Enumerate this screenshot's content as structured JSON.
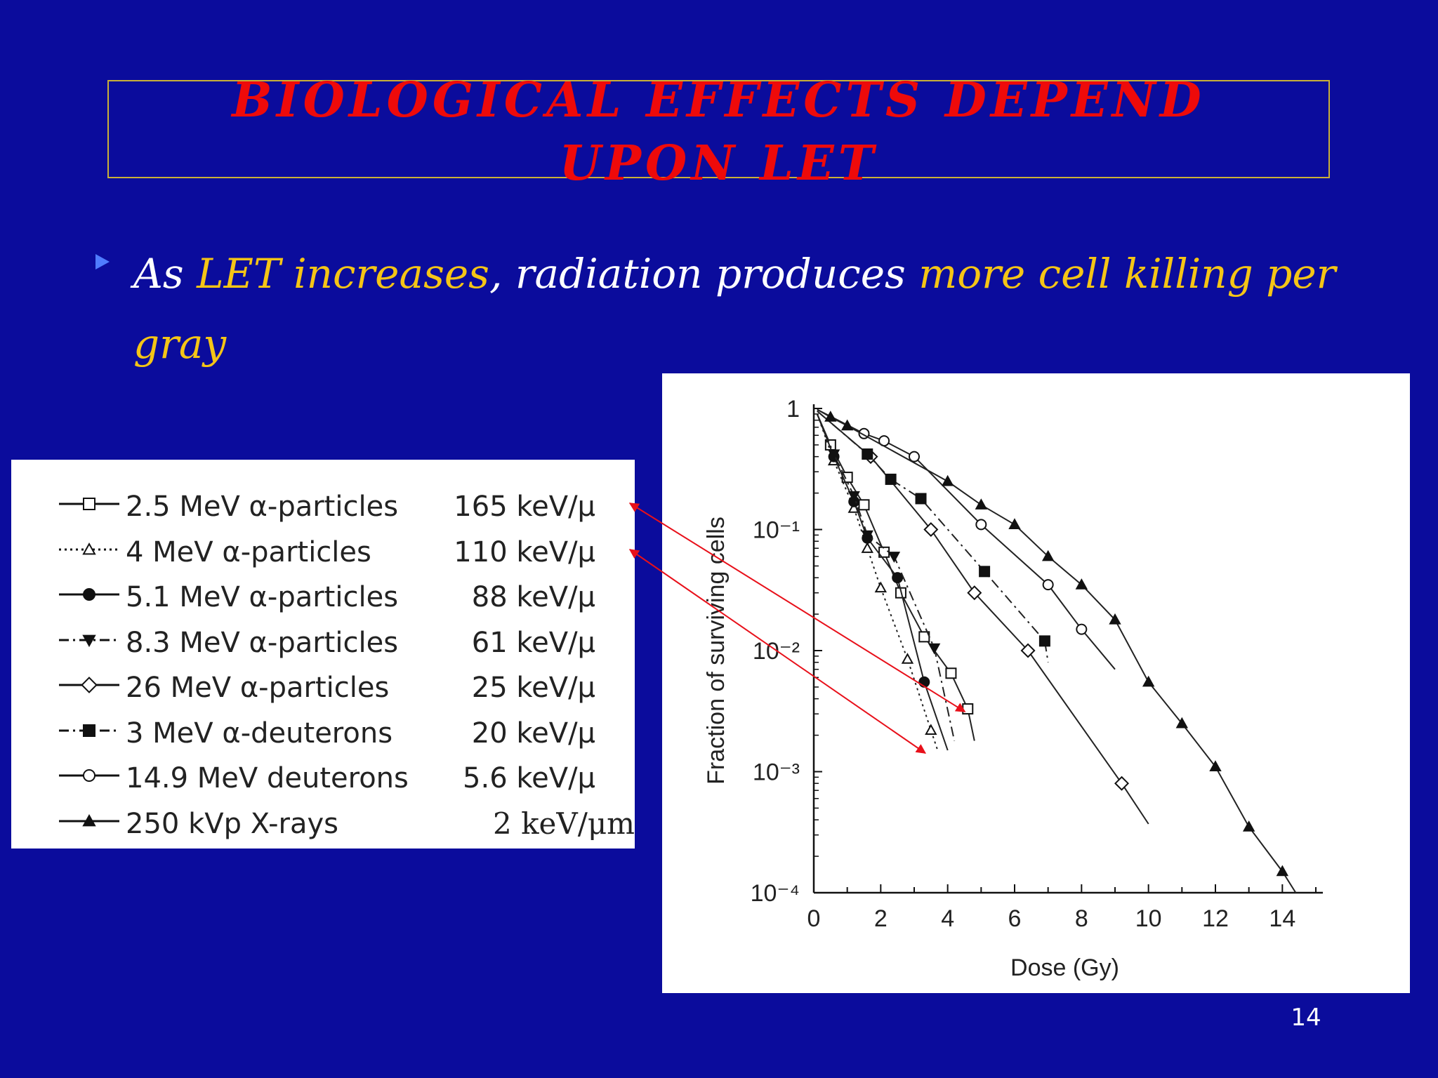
{
  "slide": {
    "title_line1": "BIOLOGICAL EFFECTS DEPEND",
    "title_line2": "UPON LET",
    "bullet": {
      "t1": "As ",
      "t2": "LET increases",
      "t3": ", radiation produces ",
      "t4": "more cell killing per gray"
    },
    "page_number": "14",
    "colors": {
      "background": "#0b0c9c",
      "title": "#ee0a0a",
      "highlight": "#f5c516",
      "arrow": "#e8101a"
    }
  },
  "legend": [
    {
      "label": "2.5 MeV α-particles",
      "let": "165 keV/μ",
      "symbol": "square-open",
      "line": "solid"
    },
    {
      "label": "4 MeV α-particles",
      "let": "110 keV/μ",
      "symbol": "triangle-open",
      "line": "dotted"
    },
    {
      "label": "5.1 MeV α-particles",
      "let": "88 keV/μ",
      "symbol": "circle-filled",
      "line": "solid"
    },
    {
      "label": "8.3 MeV α-particles",
      "let": "61 keV/μ",
      "symbol": "triangle-down-filled",
      "line": "dashdot"
    },
    {
      "label": "26 MeV α-particles",
      "let": "25 keV/μ",
      "symbol": "diamond-open",
      "line": "solid"
    },
    {
      "label": "3 MeV α-deuterons",
      "let": "20 keV/μ",
      "symbol": "square-filled",
      "line": "dashdot"
    },
    {
      "label": "14.9 MeV deuterons",
      "let": "5.6 keV/μ",
      "symbol": "circle-open",
      "line": "solid"
    },
    {
      "label": "250 kVp X-rays",
      "let": "2 keV/μm",
      "symbol": "triangle-filled",
      "line": "solid"
    }
  ],
  "chart_data": {
    "type": "scatter",
    "xlabel": "Dose (Gy)",
    "ylabel": "Fraction of surviving cells",
    "xlim": [
      0,
      15
    ],
    "ylim": [
      0.0001,
      1
    ],
    "y_scale": "log",
    "xticks": [
      "0",
      "2",
      "4",
      "6",
      "8",
      "10",
      "12",
      "14"
    ],
    "yticks": [
      "1",
      "10⁻¹",
      "10⁻²",
      "10⁻³",
      "10⁻⁴"
    ],
    "series": [
      {
        "name": "2.5 MeV α-particles",
        "symbol": "square-open",
        "line": "solid",
        "x": [
          0.5,
          1.0,
          1.5,
          2.1,
          2.6,
          3.3,
          4.1,
          4.6
        ],
        "y": [
          0.5,
          0.27,
          0.16,
          0.065,
          0.03,
          0.013,
          0.0065,
          0.0033
        ],
        "fit": [
          [
            0.1,
            0.9
          ],
          [
            4.8,
            0.0018
          ]
        ]
      },
      {
        "name": "4 MeV α-particles",
        "symbol": "triangle-open",
        "line": "dotted",
        "x": [
          0.6,
          1.2,
          1.6,
          2.0,
          2.8,
          3.5
        ],
        "y": [
          0.37,
          0.15,
          0.07,
          0.033,
          0.0085,
          0.0022
        ],
        "fit": [
          [
            0.1,
            0.9
          ],
          [
            3.7,
            0.0015
          ]
        ]
      },
      {
        "name": "5.1 MeV α-particles",
        "symbol": "circle-filled",
        "line": "solid",
        "x": [
          0.6,
          1.2,
          1.6,
          2.5,
          3.3
        ],
        "y": [
          0.4,
          0.17,
          0.085,
          0.04,
          0.0055
        ],
        "fit": [
          [
            0.1,
            0.9
          ],
          [
            4.0,
            0.0015
          ]
        ]
      },
      {
        "name": "8.3 MeV α-particles",
        "symbol": "triangle-down-filled",
        "line": "dashdot",
        "x": [
          0.6,
          1.2,
          1.6,
          2.4,
          3.6
        ],
        "y": [
          0.42,
          0.19,
          0.09,
          0.06,
          0.0105
        ],
        "fit": [
          [
            0.1,
            0.9
          ],
          [
            4.2,
            0.0018
          ]
        ]
      },
      {
        "name": "26 MeV α-particles",
        "symbol": "diamond-open",
        "line": "solid",
        "x": [
          1.7,
          3.5,
          4.8,
          6.4,
          9.2
        ],
        "y": [
          0.4,
          0.1,
          0.03,
          0.01,
          0.0008
        ],
        "fit": [
          [
            0.1,
            0.95
          ],
          [
            10.0,
            0.00037
          ]
        ]
      },
      {
        "name": "3 MeV α-deuterons",
        "symbol": "square-filled",
        "line": "dashdot",
        "x": [
          1.6,
          2.3,
          3.2,
          5.1,
          6.9
        ],
        "y": [
          0.42,
          0.26,
          0.18,
          0.045,
          0.012
        ],
        "fit": [
          [
            0.1,
            0.95
          ],
          [
            7.0,
            0.008
          ]
        ]
      },
      {
        "name": "14.9 MeV deuterons",
        "symbol": "circle-open",
        "line": "solid",
        "x": [
          1.5,
          2.1,
          3.0,
          5.0,
          7.0,
          8.0
        ],
        "y": [
          0.62,
          0.54,
          0.4,
          0.11,
          0.035,
          0.015
        ],
        "fit": [
          [
            0.1,
            0.98
          ],
          [
            9.0,
            0.007
          ]
        ]
      },
      {
        "name": "250 kVp X-rays",
        "symbol": "triangle-filled",
        "line": "solid",
        "x": [
          0.5,
          1.0,
          4.0,
          5.0,
          6.0,
          7.0,
          8.0,
          9.0,
          10.0,
          11.0,
          12.0,
          13.0,
          14.0
        ],
        "y": [
          0.85,
          0.72,
          0.25,
          0.16,
          0.11,
          0.06,
          0.035,
          0.018,
          0.0055,
          0.0025,
          0.0011,
          0.00035,
          0.00015
        ],
        "fit": [
          [
            0.1,
            0.98
          ],
          [
            14.4,
            0.0001
          ]
        ]
      }
    ]
  },
  "annotations": {
    "arrows": [
      {
        "from": "legend 165 keV/μ",
        "to": "2.5 MeV α-particles curve at 10⁻² to 10⁻³"
      },
      {
        "from": "legend 110 keV/μ",
        "to": "4 MeV α-particles curve near 10⁻³"
      }
    ]
  }
}
